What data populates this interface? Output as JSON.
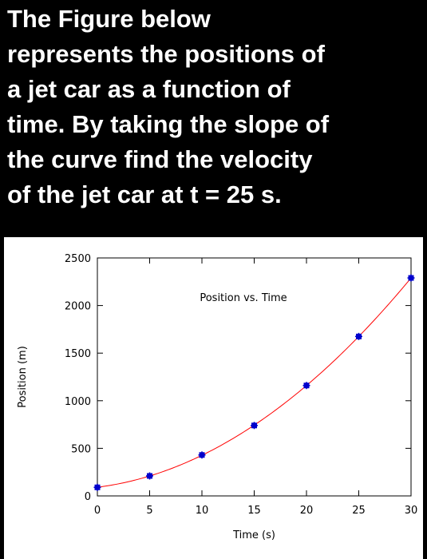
{
  "question": {
    "text": "The Figure below\nrepresents the positions of\na jet car as a function of\ntime. By taking the slope of\nthe curve find the velocity\nof the jet car at t = 25 s."
  },
  "colors": {
    "background": "#000000",
    "text": "#ffffff",
    "curve": "#ff0000",
    "markers": "#0000cc"
  },
  "chart_data": {
    "type": "scatter",
    "title": "Position vs. Time",
    "xlabel": "Time (s)",
    "ylabel": "Position (m)",
    "xlim": [
      0,
      30
    ],
    "ylim": [
      0,
      2500
    ],
    "x_ticks": [
      0,
      5,
      10,
      15,
      20,
      25,
      30
    ],
    "x_tick_labels": [
      "0",
      "5",
      "10",
      "15",
      "20",
      "25",
      "30"
    ],
    "y_ticks": [
      0,
      500,
      1000,
      1500,
      2000,
      2500
    ],
    "y_tick_labels": [
      "0",
      "500",
      "1000",
      "1500",
      "2000",
      "2500"
    ],
    "grid": false,
    "series": [
      {
        "x": [
          0,
          5,
          10,
          15,
          20,
          25,
          30
        ],
        "y": [
          90,
          210,
          430,
          740,
          1160,
          1675,
          2290
        ],
        "marker": "square",
        "fit": "quadratic"
      }
    ]
  }
}
